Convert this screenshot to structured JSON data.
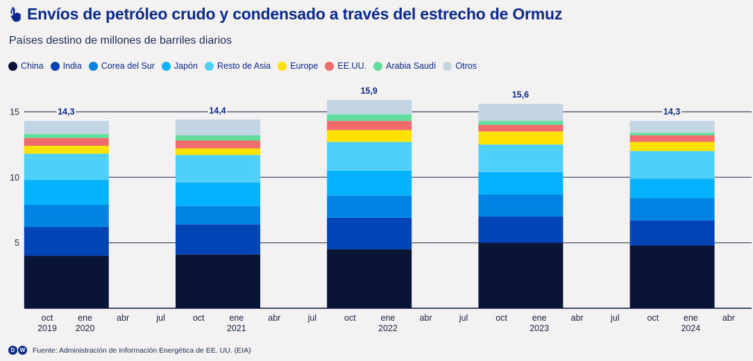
{
  "header": {
    "title": "Envíos de petróleo crudo y condensado a través del estrecho de Ormuz",
    "title_icon": "touch-hand-icon",
    "subtitle": "Países destino de millones de barriles diarios"
  },
  "footer": {
    "logo": "DW",
    "logo_d": "D",
    "logo_w": "W",
    "source": "Fuente: Administración de Información Energética de EE. UU. (EIA)"
  },
  "chart_data": {
    "type": "bar",
    "stacked": true,
    "title": "Envíos de petróleo crudo y condensado a través del estrecho de Ormuz",
    "subtitle": "Países destino de millones de barriles diarios",
    "xlabel": "",
    "ylabel": "",
    "ylim": [
      0,
      16
    ],
    "yticks": [
      5,
      10,
      15
    ],
    "grid": true,
    "legend_position": "top-left",
    "categories": [
      "2020",
      "2021",
      "2022",
      "2023",
      "2024"
    ],
    "totals": [
      14.3,
      14.4,
      15.9,
      15.6,
      14.3
    ],
    "total_labels": [
      "14,3",
      "14,4",
      "15,9",
      "15,6",
      "14,3"
    ],
    "bar_positions": [
      0.5,
      4.5,
      8.5,
      12.5,
      16.5
    ],
    "xticks": [
      {
        "label": "oct",
        "year": "2019",
        "pos": 0
      },
      {
        "label": "ene",
        "year": "2020",
        "pos": 1
      },
      {
        "label": "abr",
        "year": "",
        "pos": 2
      },
      {
        "label": "jul",
        "year": "",
        "pos": 3
      },
      {
        "label": "oct",
        "year": "",
        "pos": 4
      },
      {
        "label": "ene",
        "year": "2021",
        "pos": 5
      },
      {
        "label": "abr",
        "year": "",
        "pos": 6
      },
      {
        "label": "jul",
        "year": "",
        "pos": 7
      },
      {
        "label": "oct",
        "year": "",
        "pos": 8
      },
      {
        "label": "ene",
        "year": "2022",
        "pos": 9
      },
      {
        "label": "abr",
        "year": "",
        "pos": 10
      },
      {
        "label": "jul",
        "year": "",
        "pos": 11
      },
      {
        "label": "oct",
        "year": "",
        "pos": 12
      },
      {
        "label": "ene",
        "year": "2023",
        "pos": 13
      },
      {
        "label": "abr",
        "year": "",
        "pos": 14
      },
      {
        "label": "jul",
        "year": "",
        "pos": 15
      },
      {
        "label": "oct",
        "year": "",
        "pos": 16
      },
      {
        "label": "ene",
        "year": "2024",
        "pos": 17
      },
      {
        "label": "abr",
        "year": "",
        "pos": 18
      }
    ],
    "series": [
      {
        "name": "China",
        "color": "#0a1436",
        "values": [
          4.0,
          4.1,
          4.5,
          5.0,
          4.8
        ]
      },
      {
        "name": "India",
        "color": "#0044b6",
        "values": [
          2.2,
          2.3,
          2.4,
          2.0,
          1.9
        ]
      },
      {
        "name": "Corea del Sur",
        "color": "#0083e2",
        "values": [
          1.7,
          1.4,
          1.7,
          1.7,
          1.7
        ]
      },
      {
        "name": "Japón",
        "color": "#05b2fc",
        "values": [
          1.9,
          1.8,
          1.9,
          1.7,
          1.5
        ]
      },
      {
        "name": "Resto de Asia",
        "color": "#4fd0fb",
        "values": [
          2.0,
          2.1,
          2.2,
          2.1,
          2.1
        ]
      },
      {
        "name": "Europe",
        "color": "#fde100",
        "values": [
          0.6,
          0.5,
          0.9,
          1.0,
          0.7
        ]
      },
      {
        "name": "EE.UU.",
        "color": "#f06b6b",
        "values": [
          0.6,
          0.6,
          0.7,
          0.5,
          0.5
        ]
      },
      {
        "name": "Arabia Saudí",
        "color": "#62dd9b",
        "values": [
          0.3,
          0.4,
          0.5,
          0.3,
          0.2
        ]
      },
      {
        "name": "Otros",
        "color": "#c3d5e3",
        "values": [
          1.0,
          1.2,
          1.1,
          1.3,
          0.9
        ]
      }
    ]
  }
}
